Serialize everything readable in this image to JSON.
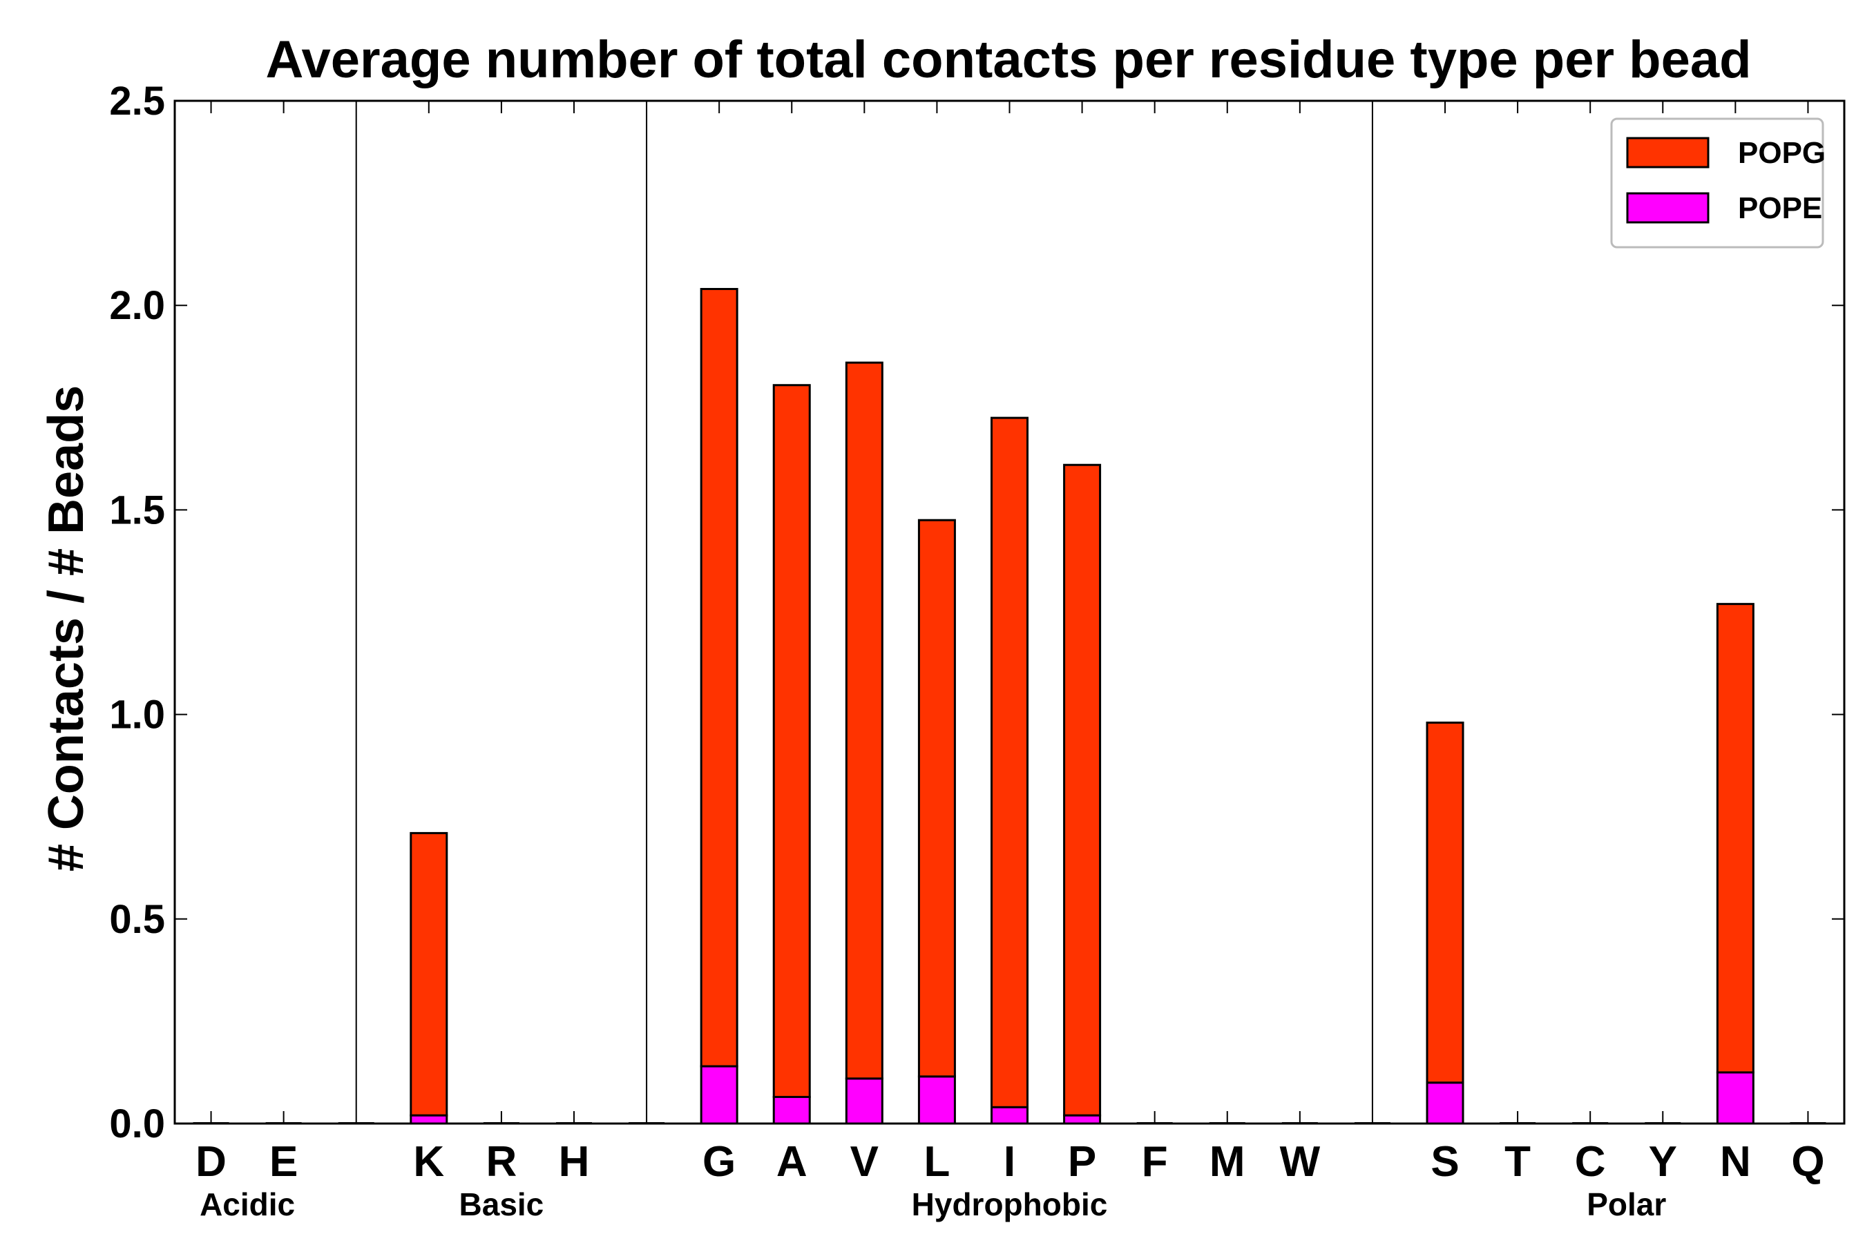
{
  "chart_data": {
    "type": "bar",
    "stacked": true,
    "title": "Average number of total contacts per residue type per bead",
    "xlabel": "",
    "ylabel": "# Contacts / # Beads",
    "ylim": [
      0,
      2.5
    ],
    "yticks": [
      "0.0",
      "0.5",
      "1.0",
      "1.5",
      "2.0",
      "2.5"
    ],
    "categories": [
      "D",
      "E",
      "K",
      "R",
      "H",
      "G",
      "A",
      "V",
      "L",
      "I",
      "P",
      "F",
      "M",
      "W",
      "S",
      "T",
      "C",
      "Y",
      "N",
      "Q"
    ],
    "slots": [
      "D",
      "E",
      "",
      "K",
      "R",
      "H",
      "",
      "G",
      "A",
      "V",
      "L",
      "I",
      "P",
      "F",
      "M",
      "W",
      "",
      "S",
      "T",
      "C",
      "Y",
      "N",
      "Q"
    ],
    "groups": [
      {
        "label": "Acidic",
        "members": [
          "D",
          "E"
        ]
      },
      {
        "label": "Basic",
        "members": [
          "K",
          "R",
          "H"
        ]
      },
      {
        "label": "Hydrophobic",
        "members": [
          "G",
          "A",
          "V",
          "L",
          "I",
          "P",
          "F",
          "M",
          "W"
        ]
      },
      {
        "label": "Polar",
        "members": [
          "S",
          "T",
          "C",
          "Y",
          "N",
          "Q"
        ]
      }
    ],
    "series": [
      {
        "name": "POPE",
        "color": "#ff00ff",
        "values": [
          0,
          0,
          0.02,
          0,
          0,
          0.14,
          0.065,
          0.11,
          0.115,
          0.04,
          0.02,
          0,
          0,
          0,
          0.1,
          0,
          0,
          0,
          0.125,
          0
        ]
      },
      {
        "name": "POPG",
        "color": "#ff3300",
        "values": [
          0,
          0,
          0.69,
          0,
          0,
          1.9,
          1.74,
          1.75,
          1.36,
          1.685,
          1.59,
          0,
          0,
          0,
          0.88,
          0,
          0,
          0,
          1.145,
          0
        ]
      }
    ],
    "legend": {
      "position": "top-right",
      "order": [
        "POPG",
        "POPE"
      ]
    },
    "grid": false
  }
}
